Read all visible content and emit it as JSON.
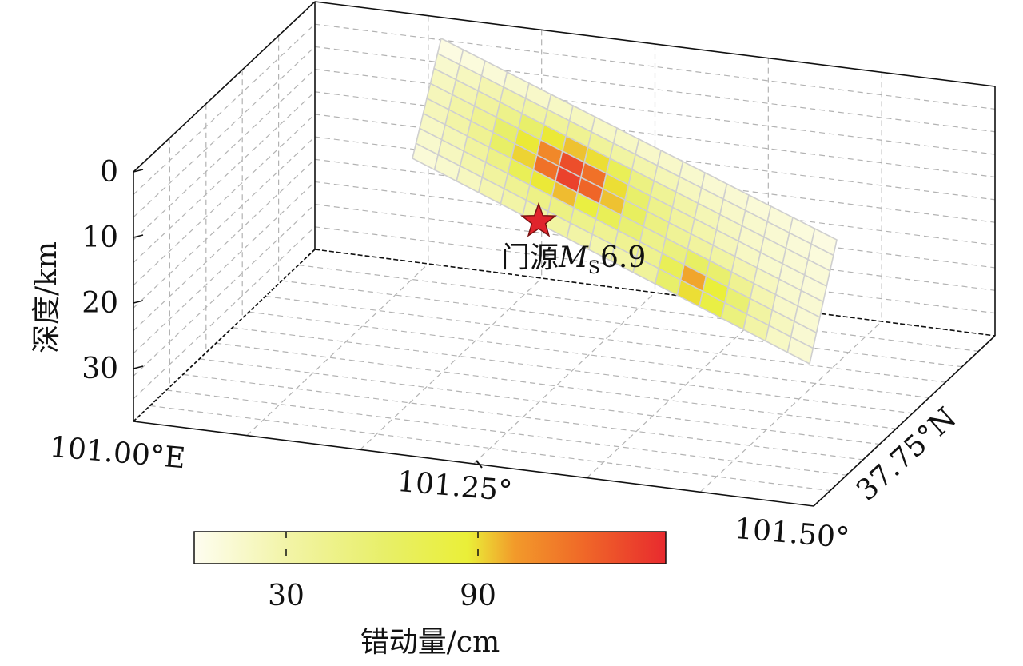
{
  "chart_data": {
    "type": "heatmap",
    "title": "",
    "depth_axis": {
      "label": "深度/km",
      "ticks": [
        "0",
        "10",
        "20",
        "30"
      ]
    },
    "longitude_axis": {
      "ticks": [
        "101.00°E",
        "101.25°",
        "101.50°"
      ]
    },
    "latitude_axis": {
      "ticks": [
        "37.75°N"
      ]
    },
    "colorbar": {
      "label": "错动量/cm",
      "ticks": [
        "30",
        "90"
      ],
      "tick_values": [
        30,
        90
      ],
      "range": [
        0,
        150
      ],
      "colors": [
        "#fefdf0",
        "#f2f4a6",
        "#e8ef6a",
        "#eaef38",
        "#f29a2a",
        "#f06a28",
        "#e82a2e"
      ]
    },
    "epicenter": {
      "name": "门源",
      "magnitude_symbol": "M",
      "magnitude_subscript": "S",
      "magnitude_value": "6.9"
    },
    "slip_grid": {
      "rows_down_dip": 8,
      "cols_along_strike": 18,
      "unit": "cm",
      "values": [
        [
          6,
          8,
          10,
          14,
          16,
          18,
          20,
          18,
          18,
          16,
          16,
          14,
          12,
          12,
          10,
          10,
          8,
          6
        ],
        [
          14,
          20,
          26,
          30,
          32,
          36,
          40,
          36,
          32,
          28,
          24,
          20,
          18,
          16,
          14,
          12,
          10,
          8
        ],
        [
          20,
          26,
          34,
          44,
          60,
          88,
          95,
          90,
          70,
          48,
          38,
          30,
          24,
          20,
          16,
          14,
          12,
          10
        ],
        [
          22,
          30,
          40,
          60,
          88,
          110,
          135,
          120,
          90,
          60,
          44,
          34,
          28,
          22,
          18,
          14,
          12,
          10
        ],
        [
          22,
          30,
          40,
          62,
          92,
          120,
          140,
          125,
          95,
          66,
          48,
          38,
          34,
          32,
          26,
          20,
          14,
          12
        ],
        [
          18,
          24,
          34,
          46,
          70,
          88,
          96,
          82,
          70,
          56,
          44,
          50,
          64,
          58,
          40,
          26,
          16,
          12
        ],
        [
          14,
          20,
          28,
          34,
          40,
          46,
          48,
          44,
          40,
          40,
          42,
          70,
          100,
          86,
          56,
          32,
          20,
          12
        ],
        [
          10,
          14,
          20,
          26,
          30,
          32,
          32,
          30,
          28,
          30,
          36,
          60,
          90,
          80,
          50,
          30,
          18,
          12
        ]
      ]
    }
  }
}
